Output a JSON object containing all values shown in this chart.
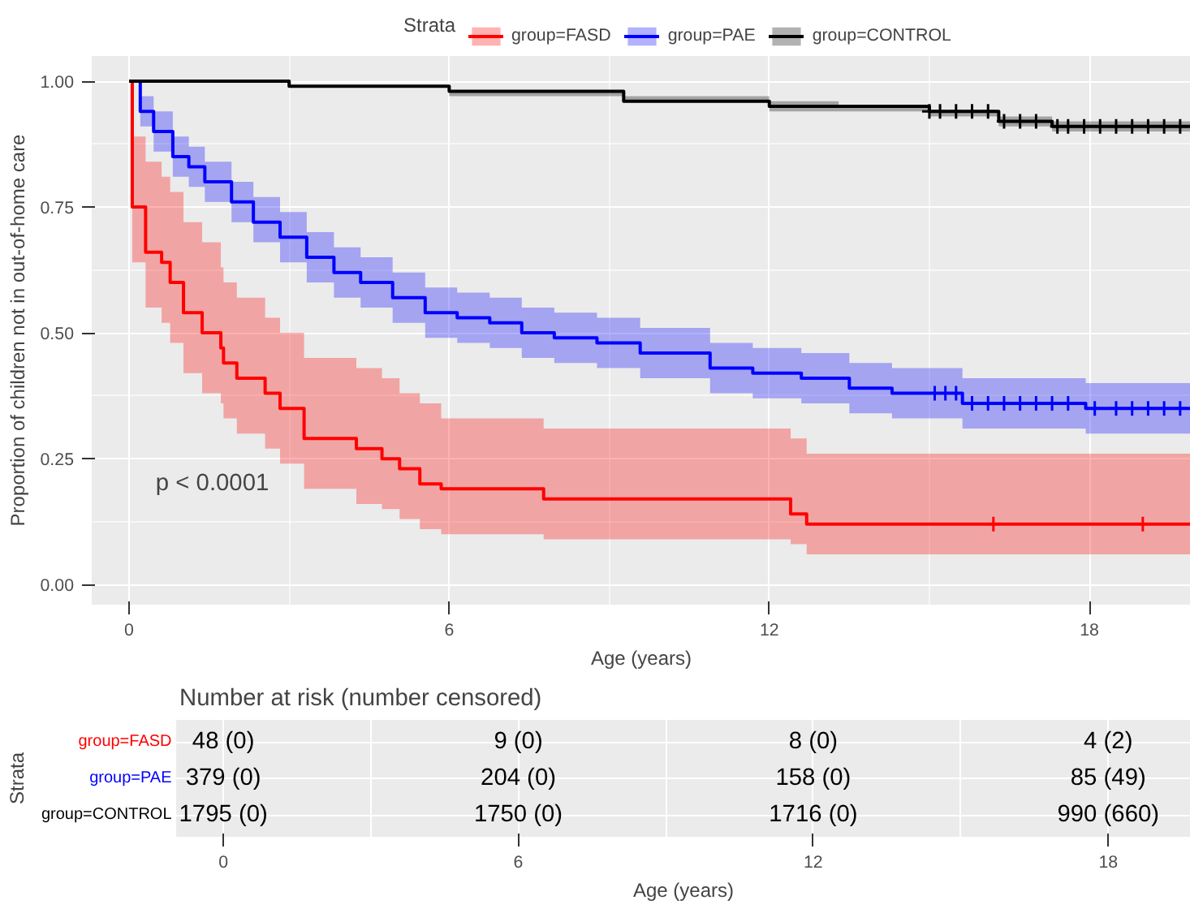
{
  "chart_data": [
    {
      "type": "step",
      "xlabel": "Age (years)",
      "ylabel": "Proportion of children not in out-of-home care",
      "legend_title": "Strata",
      "legend": "top",
      "xlim": [
        -0.7,
        19.9
      ],
      "ylim": [
        -0.04,
        1.05
      ],
      "xticks": [
        0,
        6,
        12,
        18
      ],
      "yticks": [
        {
          "value": 0,
          "label": "0.00"
        },
        {
          "value": 0.25,
          "label": "0.25"
        },
        {
          "value": 0.5,
          "label": "0.50"
        },
        {
          "value": 0.75,
          "label": "0.75"
        },
        {
          "value": 1,
          "label": "1.00"
        }
      ],
      "grid": true,
      "annotations": [
        "p < 0.0001"
      ],
      "series": [
        {
          "name": "group=FASD",
          "color": "#ff0000",
          "x": [
            0,
            0.06,
            0.31,
            0.61,
            0.77,
            1.02,
            1.37,
            1.72,
            1.77,
            2.02,
            2.55,
            2.83,
            3.28,
            4.26,
            4.74,
            5.07,
            5.45,
            5.85,
            7.77,
            12.4,
            12.7,
            19.9
          ],
          "values": [
            1,
            0.75,
            0.66,
            0.64,
            0.6,
            0.54,
            0.5,
            0.47,
            0.44,
            0.41,
            0.38,
            0.35,
            0.29,
            0.27,
            0.25,
            0.23,
            0.2,
            0.19,
            0.17,
            0.14,
            0.12,
            0.12
          ],
          "upper": [
            null,
            0.89,
            0.84,
            0.81,
            0.78,
            0.72,
            0.68,
            0.63,
            0.6,
            0.57,
            0.53,
            0.5,
            0.45,
            0.43,
            0.41,
            0.38,
            0.36,
            0.33,
            0.31,
            0.29,
            0.26,
            0.26
          ],
          "lower": [
            null,
            0.64,
            0.55,
            0.52,
            0.48,
            0.42,
            0.38,
            0.36,
            0.33,
            0.3,
            0.27,
            0.24,
            0.19,
            0.16,
            0.15,
            0.13,
            0.11,
            0.1,
            0.09,
            0.08,
            0.06,
            0.06
          ]
        },
        {
          "name": "group=PAE",
          "color": "#0000ff",
          "x": [
            0,
            0.21,
            0.46,
            0.82,
            1.12,
            1.42,
            1.92,
            2.33,
            2.83,
            3.33,
            3.84,
            4.34,
            4.94,
            5.55,
            6.15,
            6.76,
            7.36,
            7.97,
            8.77,
            9.58,
            10.89,
            11.69,
            12.6,
            13.5,
            14.3,
            15.62,
            17.93,
            19.9
          ],
          "values": [
            1,
            0.94,
            0.9,
            0.85,
            0.83,
            0.8,
            0.76,
            0.72,
            0.69,
            0.65,
            0.62,
            0.6,
            0.57,
            0.54,
            0.53,
            0.52,
            0.5,
            0.49,
            0.48,
            0.46,
            0.43,
            0.42,
            0.41,
            0.39,
            0.38,
            0.36,
            0.35,
            0.35
          ],
          "upper": [
            null,
            0.97,
            0.94,
            0.89,
            0.87,
            0.84,
            0.8,
            0.77,
            0.74,
            0.7,
            0.67,
            0.65,
            0.62,
            0.59,
            0.58,
            0.57,
            0.55,
            0.54,
            0.53,
            0.51,
            0.48,
            0.47,
            0.46,
            0.44,
            0.43,
            0.41,
            0.4,
            0.4
          ],
          "lower": [
            null,
            0.91,
            0.86,
            0.81,
            0.79,
            0.76,
            0.72,
            0.68,
            0.64,
            0.6,
            0.57,
            0.55,
            0.52,
            0.49,
            0.48,
            0.47,
            0.45,
            0.44,
            0.43,
            0.41,
            0.38,
            0.37,
            0.36,
            0.34,
            0.33,
            0.31,
            0.3,
            0.3
          ]
        },
        {
          "name": "group=CONTROL",
          "color": "#000000",
          "x": [
            0,
            3,
            6,
            9.27,
            12,
            13.3,
            15,
            16.3,
            17.3,
            19.9
          ],
          "values": [
            1,
            0.99,
            0.98,
            0.96,
            0.95,
            0.95,
            0.94,
            0.92,
            0.91,
            0.91
          ],
          "upper": [
            1,
            0.99,
            0.98,
            0.97,
            0.96,
            0.95,
            0.94,
            0.93,
            0.92,
            0.92
          ],
          "lower": [
            1,
            0.99,
            0.97,
            0.96,
            0.94,
            0.94,
            0.93,
            0.91,
            0.9,
            0.9
          ]
        },
        {
          "type": "scatter",
          "marker": "cross",
          "color": "#ff0000",
          "x": [
            16.2,
            19.0
          ],
          "values": [
            0.12,
            0.12
          ]
        },
        {
          "type": "scatter",
          "marker": "cross",
          "color": "#0000ff",
          "x": [
            15.1,
            15.3,
            15.5,
            15.8,
            16.1,
            16.4,
            16.7,
            17,
            17.3,
            17.6,
            18.1,
            18.5,
            18.8,
            19.1,
            19.4,
            19.7
          ],
          "values": [
            0.38,
            0.38,
            0.38,
            0.36,
            0.36,
            0.36,
            0.36,
            0.36,
            0.36,
            0.36,
            0.35,
            0.35,
            0.35,
            0.35,
            0.35,
            0.35
          ]
        },
        {
          "type": "scatter",
          "marker": "cross",
          "color": "#000000",
          "x": [
            15,
            15.2,
            15.5,
            15.8,
            16.1,
            16.4,
            16.7,
            17,
            17.4,
            17.6,
            17.9,
            18.2,
            18.5,
            18.8,
            19.1,
            19.4,
            19.7
          ],
          "values": [
            0.94,
            0.94,
            0.94,
            0.94,
            0.94,
            0.92,
            0.92,
            0.92,
            0.91,
            0.91,
            0.91,
            0.91,
            0.91,
            0.91,
            0.91,
            0.91,
            0.91
          ]
        }
      ]
    },
    {
      "type": "heatmap",
      "title": "Number at risk (number censored)",
      "xlabel": "Age (years)",
      "ylabel": "Strata",
      "grid": true,
      "categories": [
        "0",
        "6",
        "12",
        "18"
      ],
      "y_categories": [
        "group=FASD",
        "group=PAE",
        "group=CONTROL"
      ],
      "colors": [
        "#ff0000",
        "#0000ff",
        "#000000"
      ],
      "cells": [
        [
          null,
          null,
          null,
          null
        ],
        [
          null,
          null,
          null,
          null
        ],
        [
          null,
          null,
          null,
          null
        ]
      ],
      "cell_labels": [
        [
          "48 (0)",
          "9 (0)",
          "8 (0)",
          "4 (2)"
        ],
        [
          "379 (0)",
          "204 (0)",
          "158 (0)",
          "85 (49)"
        ],
        [
          "1795 (0)",
          "1750 (0)",
          "1716 (0)",
          "990 (660)"
        ]
      ]
    }
  ]
}
